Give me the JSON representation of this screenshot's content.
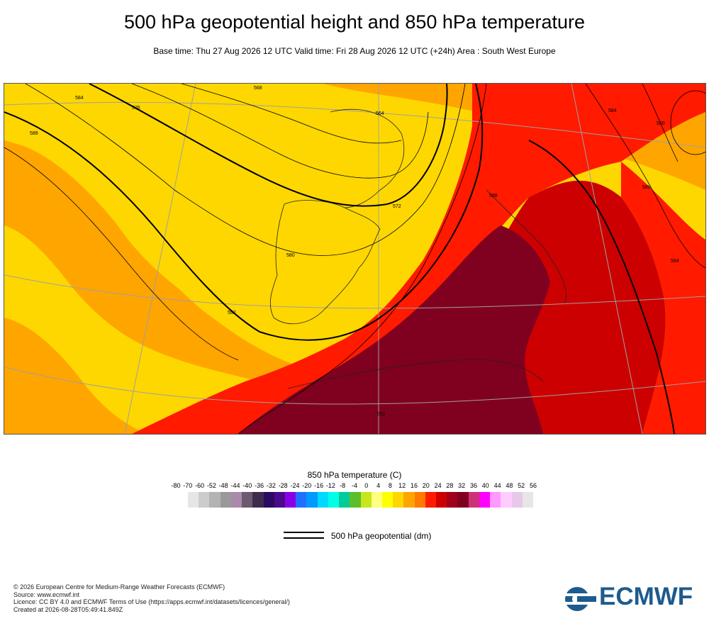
{
  "header": {
    "title": "500 hPa geopotential height and 850 hPa temperature",
    "subtitle": "Base time: Thu 27 Aug 2026 12 UTC Valid time: Fri 28 Aug 2026 12 UTC (+24h) Area : South West Europe"
  },
  "map": {
    "region": "South West Europe",
    "contour_labels": [
      "588",
      "584",
      "576",
      "572",
      "580",
      "568",
      "564",
      "592",
      "588",
      "584",
      "580",
      "592",
      "588",
      "584"
    ]
  },
  "colorbar": {
    "title": "850 hPa temperature (C)",
    "ticks": [
      "-80",
      "-70",
      "-60",
      "-52",
      "-48",
      "-44",
      "-40",
      "-36",
      "-32",
      "-28",
      "-24",
      "-20",
      "-16",
      "-12",
      "-8",
      "-4",
      "0",
      "4",
      "8",
      "12",
      "16",
      "20",
      "24",
      "28",
      "32",
      "36",
      "40",
      "44",
      "48",
      "52",
      "56"
    ],
    "colors": [
      "#e6e6e6",
      "#cccccc",
      "#b3b3b3",
      "#999999",
      "#a98aa8",
      "#6c5a70",
      "#3c2d4e",
      "#2b0a63",
      "#4a0a8a",
      "#8a00e6",
      "#2070ff",
      "#0099ff",
      "#00d9ff",
      "#00ffe6",
      "#00cc99",
      "#5cbf2a",
      "#c8e61e",
      "#ffff80",
      "#ffff00",
      "#ffd700",
      "#ffa500",
      "#ff7b00",
      "#ff1a00",
      "#cc0000",
      "#a0001a",
      "#800020",
      "#cc3377",
      "#ff00ff",
      "#ff99ff",
      "#ffccff",
      "#e8c8e8",
      "#e6e6e6"
    ]
  },
  "legend": {
    "label": "500 hPa geopotential (dm)"
  },
  "footer": {
    "line1": "© 2026 European Centre for Medium-Range Weather Forecasts (ECMWF)",
    "line2": "Source: www.ecmwf.int",
    "line3": "Licence: CC BY 4.0 and ECMWF Terms of Use (https://apps.ecmwf.int/datasets/licences/general/)",
    "line4": "Created at 2026-08-28T05:49:41.849Z"
  },
  "logo": {
    "text": "ECMWF",
    "color": "#1d5b8e"
  }
}
